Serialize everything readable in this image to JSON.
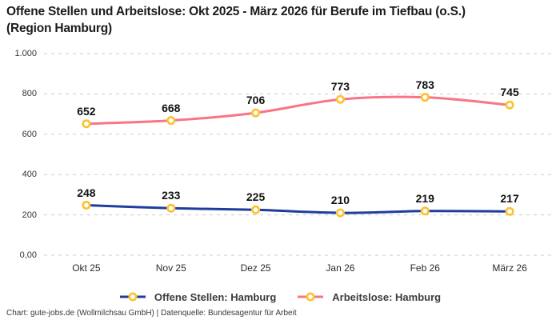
{
  "header": {
    "title_line1": "Offene Stellen und Arbeitslose: Okt 2025 - März 2026 für Berufe im Tiefbau (o.S.)",
    "title_line2": "(Region Hamburg)"
  },
  "chart_data": {
    "type": "line",
    "categories": [
      "Okt 25",
      "Nov 25",
      "Dez 25",
      "Jan 26",
      "Feb 26",
      "März 26"
    ],
    "series": [
      {
        "name": "Offene Stellen: Hamburg",
        "values": [
          248,
          233,
          225,
          210,
          219,
          217
        ],
        "color": "#1f3e9c"
      },
      {
        "name": "Arbeitslose: Hamburg",
        "values": [
          652,
          668,
          706,
          773,
          783,
          745
        ],
        "color": "#f97487"
      }
    ],
    "marker_color": "#fcc12f",
    "marker_fill": "#ffffff",
    "y_ticks": [
      {
        "label": "0,00",
        "value": 0
      },
      {
        "label": "200",
        "value": 200
      },
      {
        "label": "400",
        "value": 400
      },
      {
        "label": "600",
        "value": 600
      },
      {
        "label": "800",
        "value": 800
      },
      {
        "label": "1.000",
        "value": 1000
      }
    ],
    "ylim": [
      0,
      1000
    ],
    "grid": "dashed-horizontal",
    "grid_color": "#cbcbcb",
    "legend_position": "bottom",
    "data_labels": true
  },
  "footer": {
    "text": "Chart: gute-jobs.de (Wollmilchsau GmbH) | Datenquelle: Bundesagentur für Arbeit"
  }
}
